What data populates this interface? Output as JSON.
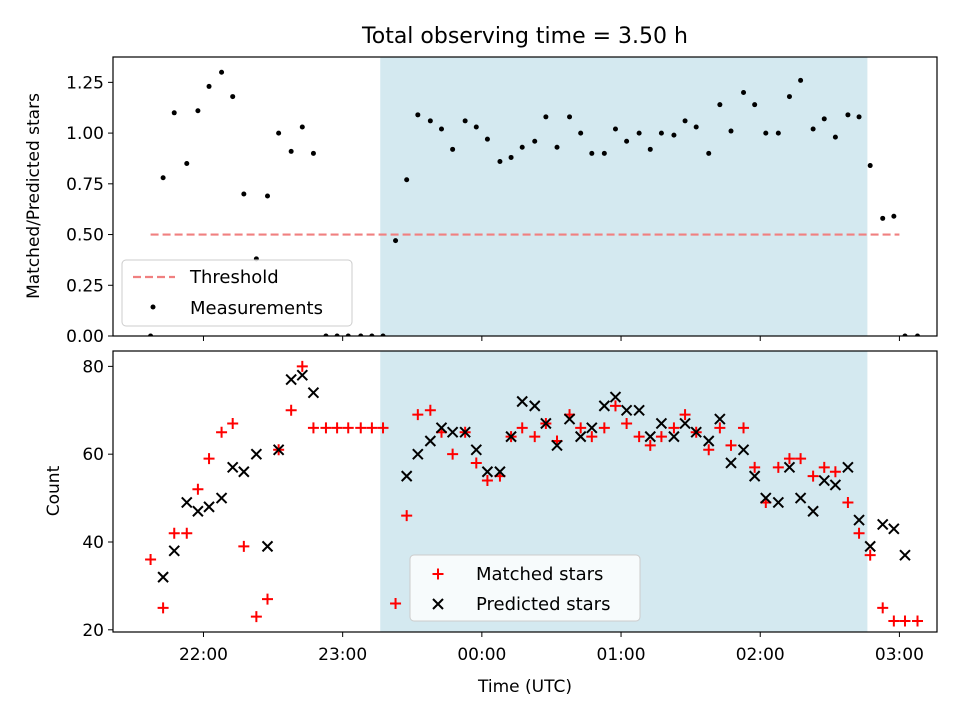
{
  "figure": {
    "title": "Total observing time = 3.50 h",
    "xlabel": "Time (UTC)",
    "x_tick_labels": [
      "22:00",
      "23:00",
      "00:00",
      "01:00",
      "02:00",
      "03:00"
    ],
    "x_tick_values": [
      22.0,
      23.0,
      24.0,
      25.0,
      26.0,
      27.0
    ],
    "xlim": [
      21.35,
      27.27
    ],
    "observing_window": {
      "start": 23.27,
      "end": 26.77,
      "color": "#d4e9f0"
    }
  },
  "chart_data": [
    {
      "type": "scatter",
      "ylabel": "Matched/Predicted stars",
      "ylim": [
        0,
        1.375
      ],
      "y_ticks": [
        0.0,
        0.25,
        0.5,
        0.75,
        1.0,
        1.25
      ],
      "y_tick_labels": [
        "0.00",
        "0.25",
        "0.50",
        "0.75",
        "1.00",
        "1.25"
      ],
      "legend_position": "lower-left",
      "threshold": {
        "name": "Threshold",
        "value": 0.5,
        "x_range": [
          21.62,
          27.0
        ],
        "color": "#f08080"
      },
      "series": [
        {
          "name": "Measurements",
          "color": "#000000",
          "points": [
            [
              21.62,
              0.0
            ],
            [
              21.71,
              0.78
            ],
            [
              21.79,
              1.1
            ],
            [
              21.88,
              0.85
            ],
            [
              21.96,
              1.11
            ],
            [
              22.04,
              1.23
            ],
            [
              22.13,
              1.3
            ],
            [
              22.21,
              1.18
            ],
            [
              22.29,
              0.7
            ],
            [
              22.38,
              0.38
            ],
            [
              22.46,
              0.69
            ],
            [
              22.54,
              1.0
            ],
            [
              22.63,
              0.91
            ],
            [
              22.71,
              1.03
            ],
            [
              22.79,
              0.9
            ],
            [
              22.88,
              0.0
            ],
            [
              22.96,
              0.0
            ],
            [
              23.04,
              0.0
            ],
            [
              23.13,
              0.0
            ],
            [
              23.21,
              0.0
            ],
            [
              23.29,
              0.0
            ],
            [
              23.38,
              0.47
            ],
            [
              23.46,
              0.77
            ],
            [
              23.54,
              1.09
            ],
            [
              23.63,
              1.06
            ],
            [
              23.71,
              1.02
            ],
            [
              23.79,
              0.92
            ],
            [
              23.88,
              1.06
            ],
            [
              23.96,
              1.03
            ],
            [
              24.04,
              0.97
            ],
            [
              24.13,
              0.86
            ],
            [
              24.21,
              0.88
            ],
            [
              24.29,
              0.93
            ],
            [
              24.38,
              0.96
            ],
            [
              24.46,
              1.08
            ],
            [
              24.54,
              0.93
            ],
            [
              24.63,
              1.08
            ],
            [
              24.71,
              1.0
            ],
            [
              24.79,
              0.9
            ],
            [
              24.88,
              0.9
            ],
            [
              24.96,
              1.02
            ],
            [
              25.04,
              0.96
            ],
            [
              25.13,
              1.0
            ],
            [
              25.21,
              0.92
            ],
            [
              25.29,
              1.0
            ],
            [
              25.38,
              0.99
            ],
            [
              25.46,
              1.06
            ],
            [
              25.54,
              1.03
            ],
            [
              25.63,
              0.9
            ],
            [
              25.71,
              1.14
            ],
            [
              25.79,
              1.01
            ],
            [
              25.88,
              1.2
            ],
            [
              25.96,
              1.14
            ],
            [
              26.04,
              1.0
            ],
            [
              26.13,
              1.0
            ],
            [
              26.21,
              1.18
            ],
            [
              26.29,
              1.26
            ],
            [
              26.38,
              1.02
            ],
            [
              26.46,
              1.07
            ],
            [
              26.54,
              0.98
            ],
            [
              26.63,
              1.09
            ],
            [
              26.71,
              1.08
            ],
            [
              26.79,
              0.84
            ],
            [
              26.88,
              0.58
            ],
            [
              26.96,
              0.59
            ],
            [
              27.04,
              0.0
            ],
            [
              27.13,
              0.0
            ]
          ]
        }
      ]
    },
    {
      "type": "scatter",
      "ylabel": "Count",
      "ylim": [
        19.5,
        83.5
      ],
      "y_ticks": [
        20,
        40,
        60,
        80
      ],
      "y_tick_labels": [
        "20",
        "40",
        "60",
        "80"
      ],
      "legend_position": "lower-center",
      "series": [
        {
          "name": "Matched stars",
          "marker": "plus",
          "color": "#ff0000",
          "points": [
            [
              21.62,
              36
            ],
            [
              21.71,
              25
            ],
            [
              21.79,
              42
            ],
            [
              21.88,
              42
            ],
            [
              21.96,
              52
            ],
            [
              22.04,
              59
            ],
            [
              22.13,
              65
            ],
            [
              22.21,
              67
            ],
            [
              22.29,
              39
            ],
            [
              22.38,
              23
            ],
            [
              22.46,
              27
            ],
            [
              22.54,
              61
            ],
            [
              22.63,
              70
            ],
            [
              22.71,
              80
            ],
            [
              22.79,
              66
            ],
            [
              22.88,
              66
            ],
            [
              22.96,
              66
            ],
            [
              23.04,
              66
            ],
            [
              23.13,
              66
            ],
            [
              23.21,
              66
            ],
            [
              23.29,
              66
            ],
            [
              23.38,
              26
            ],
            [
              23.46,
              46
            ],
            [
              23.54,
              69
            ],
            [
              23.63,
              70
            ],
            [
              23.71,
              65
            ],
            [
              23.79,
              60
            ],
            [
              23.88,
              65
            ],
            [
              23.96,
              58
            ],
            [
              24.04,
              54
            ],
            [
              24.13,
              55
            ],
            [
              24.21,
              64
            ],
            [
              24.29,
              66
            ],
            [
              24.38,
              64
            ],
            [
              24.46,
              67
            ],
            [
              24.54,
              63
            ],
            [
              24.63,
              69
            ],
            [
              24.71,
              66
            ],
            [
              24.79,
              64
            ],
            [
              24.88,
              66
            ],
            [
              24.96,
              71
            ],
            [
              25.04,
              67
            ],
            [
              25.13,
              64
            ],
            [
              25.21,
              62
            ],
            [
              25.29,
              64
            ],
            [
              25.38,
              66
            ],
            [
              25.46,
              69
            ],
            [
              25.54,
              65
            ],
            [
              25.63,
              61
            ],
            [
              25.71,
              66
            ],
            [
              25.79,
              62
            ],
            [
              25.88,
              66
            ],
            [
              25.96,
              57
            ],
            [
              26.04,
              49
            ],
            [
              26.13,
              57
            ],
            [
              26.21,
              59
            ],
            [
              26.29,
              59
            ],
            [
              26.38,
              55
            ],
            [
              26.46,
              57
            ],
            [
              26.54,
              56
            ],
            [
              26.63,
              49
            ],
            [
              26.71,
              42
            ],
            [
              26.79,
              37
            ],
            [
              26.88,
              25
            ],
            [
              26.96,
              22
            ],
            [
              27.04,
              22
            ],
            [
              27.13,
              22
            ]
          ]
        },
        {
          "name": "Predicted stars",
          "marker": "x",
          "color": "#000000",
          "points": [
            [
              21.71,
              32
            ],
            [
              21.79,
              38
            ],
            [
              21.88,
              49
            ],
            [
              21.96,
              47
            ],
            [
              22.04,
              48
            ],
            [
              22.13,
              50
            ],
            [
              22.21,
              57
            ],
            [
              22.29,
              56
            ],
            [
              22.38,
              60
            ],
            [
              22.46,
              39
            ],
            [
              22.54,
              61
            ],
            [
              22.63,
              77
            ],
            [
              22.71,
              78
            ],
            [
              22.79,
              74
            ],
            [
              23.46,
              55
            ],
            [
              23.54,
              60
            ],
            [
              23.63,
              63
            ],
            [
              23.71,
              66
            ],
            [
              23.79,
              65
            ],
            [
              23.88,
              65
            ],
            [
              23.96,
              61
            ],
            [
              24.04,
              56
            ],
            [
              24.13,
              56
            ],
            [
              24.21,
              64
            ],
            [
              24.29,
              72
            ],
            [
              24.38,
              71
            ],
            [
              24.46,
              67
            ],
            [
              24.54,
              62
            ],
            [
              24.63,
              68
            ],
            [
              24.71,
              64
            ],
            [
              24.79,
              66
            ],
            [
              24.88,
              71
            ],
            [
              24.96,
              73
            ],
            [
              25.04,
              70
            ],
            [
              25.13,
              70
            ],
            [
              25.21,
              64
            ],
            [
              25.29,
              67
            ],
            [
              25.38,
              64
            ],
            [
              25.46,
              67
            ],
            [
              25.54,
              65
            ],
            [
              25.63,
              63
            ],
            [
              25.71,
              68
            ],
            [
              25.79,
              58
            ],
            [
              25.88,
              61
            ],
            [
              25.96,
              55
            ],
            [
              26.04,
              50
            ],
            [
              26.13,
              49
            ],
            [
              26.21,
              57
            ],
            [
              26.29,
              50
            ],
            [
              26.38,
              47
            ],
            [
              26.46,
              54
            ],
            [
              26.54,
              53
            ],
            [
              26.63,
              57
            ],
            [
              26.71,
              45
            ],
            [
              26.79,
              39
            ],
            [
              26.88,
              44
            ],
            [
              26.96,
              43
            ],
            [
              27.04,
              37
            ]
          ]
        }
      ]
    }
  ]
}
